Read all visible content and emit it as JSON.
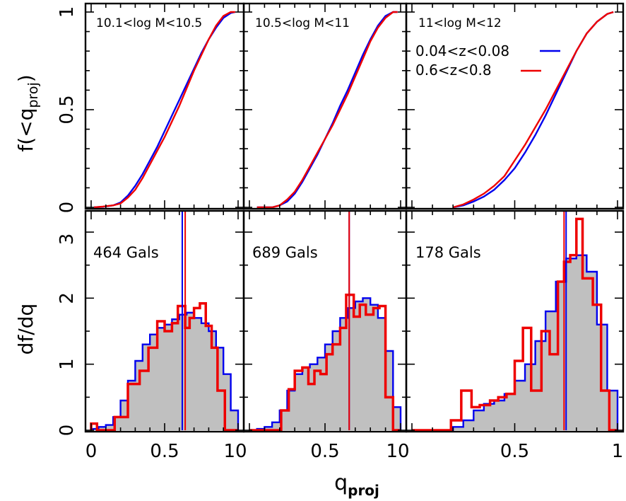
{
  "chart_data": {
    "type": "line",
    "figure": {
      "xlabel": "q",
      "xlabel_sub": "proj",
      "xlim": [
        0,
        1
      ],
      "x_ticks": [
        "0",
        "0.5",
        "1"
      ]
    },
    "colors": {
      "low_z": "#0000ee",
      "high_z": "#ee0000",
      "fill": "#c0c0c0"
    },
    "legend": {
      "placement": "top-right panel",
      "entries": [
        {
          "label": "0.04<z<0.08",
          "color": "#0000ee"
        },
        {
          "label": "0.6<z<0.8",
          "color": "#ee0000"
        }
      ]
    },
    "top_row": {
      "type": "line",
      "ylabel": "f(<q",
      "ylabel_sub": "proj",
      "ylabel_close": ")",
      "ylim": [
        0,
        1
      ],
      "y_ticks": [
        "0",
        "0.5",
        "1"
      ]
    },
    "bottom_row": {
      "type": "histogram",
      "ylabel": "df/dq",
      "ylim": [
        0,
        3
      ],
      "y_ticks": [
        "0",
        "1",
        "2",
        "3"
      ]
    },
    "panels": [
      {
        "mass_label": "10.1<log M<10.5",
        "count_label": "464 Gals",
        "median_low": 0.62,
        "median_high": 0.64,
        "cdf_low_q": [
          0.02,
          0.08,
          0.15,
          0.2,
          0.25,
          0.3,
          0.35,
          0.4,
          0.45,
          0.5,
          0.55,
          0.6,
          0.65,
          0.7,
          0.75,
          0.8,
          0.85,
          0.9,
          0.95,
          0.98
        ],
        "cdf_low_f": [
          0.0,
          0.003,
          0.01,
          0.025,
          0.06,
          0.11,
          0.17,
          0.24,
          0.31,
          0.39,
          0.47,
          0.55,
          0.63,
          0.71,
          0.79,
          0.86,
          0.92,
          0.97,
          0.995,
          1.0
        ],
        "cdf_high_q": [
          0.02,
          0.08,
          0.15,
          0.2,
          0.25,
          0.3,
          0.35,
          0.4,
          0.45,
          0.5,
          0.55,
          0.6,
          0.65,
          0.7,
          0.75,
          0.8,
          0.85,
          0.9,
          0.95,
          0.98
        ],
        "cdf_high_f": [
          0.0,
          0.004,
          0.01,
          0.02,
          0.05,
          0.09,
          0.15,
          0.22,
          0.29,
          0.36,
          0.44,
          0.52,
          0.61,
          0.7,
          0.78,
          0.86,
          0.93,
          0.98,
          1.0,
          1.0
        ],
        "hist_q": [
          0.0,
          0.05,
          0.1,
          0.15,
          0.2,
          0.25,
          0.3,
          0.35,
          0.4,
          0.45,
          0.5,
          0.55,
          0.6,
          0.65,
          0.7,
          0.75,
          0.8,
          0.85,
          0.9,
          0.95,
          1.0
        ],
        "hist_low": [
          0.02,
          0.05,
          0.08,
          0.2,
          0.45,
          0.75,
          1.05,
          1.3,
          1.45,
          1.55,
          1.6,
          1.68,
          1.75,
          1.78,
          1.7,
          1.62,
          1.5,
          1.25,
          0.85,
          0.3
        ],
        "hist_high_edges": [
          0.0,
          0.04,
          0.08,
          0.16,
          0.25,
          0.33,
          0.39,
          0.45,
          0.5,
          0.55,
          0.59,
          0.64,
          0.67,
          0.7,
          0.74,
          0.78,
          0.82,
          0.86,
          0.91,
          0.96,
          1.0
        ],
        "hist_high": [
          0.1,
          0.0,
          0.0,
          0.2,
          0.7,
          0.9,
          1.25,
          1.65,
          1.5,
          1.62,
          1.88,
          1.55,
          1.7,
          1.85,
          1.92,
          1.58,
          1.25,
          0.6,
          0.0,
          0.0
        ]
      },
      {
        "mass_label": "10.5<log M<11",
        "count_label": "689 Gals",
        "median_low": 0.66,
        "median_high": 0.66,
        "cdf_low_q": [
          0.05,
          0.15,
          0.2,
          0.25,
          0.3,
          0.35,
          0.4,
          0.45,
          0.5,
          0.55,
          0.6,
          0.65,
          0.7,
          0.75,
          0.8,
          0.85,
          0.9,
          0.95,
          0.98
        ],
        "cdf_low_f": [
          0.0,
          0.0,
          0.01,
          0.03,
          0.07,
          0.13,
          0.2,
          0.27,
          0.35,
          0.43,
          0.52,
          0.6,
          0.69,
          0.78,
          0.86,
          0.93,
          0.98,
          1.0,
          1.0
        ],
        "cdf_high_q": [
          0.05,
          0.15,
          0.2,
          0.25,
          0.3,
          0.35,
          0.4,
          0.45,
          0.5,
          0.55,
          0.6,
          0.65,
          0.7,
          0.75,
          0.8,
          0.85,
          0.9,
          0.95,
          0.98
        ],
        "cdf_high_f": [
          0.0,
          0.0,
          0.01,
          0.04,
          0.08,
          0.14,
          0.21,
          0.28,
          0.35,
          0.42,
          0.5,
          0.58,
          0.67,
          0.76,
          0.85,
          0.92,
          0.97,
          1.0,
          1.0
        ],
        "hist_q": [
          0.0,
          0.05,
          0.1,
          0.15,
          0.2,
          0.25,
          0.3,
          0.35,
          0.4,
          0.45,
          0.5,
          0.55,
          0.6,
          0.65,
          0.7,
          0.75,
          0.8,
          0.85,
          0.9,
          0.95,
          1.0
        ],
        "hist_low": [
          0.0,
          0.02,
          0.05,
          0.12,
          0.3,
          0.6,
          0.85,
          0.95,
          1.0,
          1.1,
          1.3,
          1.5,
          1.7,
          1.85,
          1.95,
          2.0,
          1.9,
          1.7,
          1.2,
          0.35
        ],
        "hist_high_edges": [
          0.0,
          0.08,
          0.13,
          0.21,
          0.26,
          0.3,
          0.35,
          0.39,
          0.43,
          0.47,
          0.51,
          0.55,
          0.6,
          0.64,
          0.69,
          0.73,
          0.77,
          0.82,
          0.86,
          0.9,
          0.95,
          1.0
        ],
        "hist_high": [
          0.0,
          0.0,
          0.0,
          0.3,
          0.62,
          0.9,
          0.95,
          0.7,
          0.9,
          0.85,
          1.15,
          1.3,
          1.55,
          2.05,
          1.72,
          1.9,
          1.75,
          1.85,
          1.88,
          0.5,
          0.0
        ]
      },
      {
        "mass_label": "11<log M<12",
        "count_label": "178 Gals",
        "median_low": 0.75,
        "median_high": 0.74,
        "cdf_low_q": [
          0.2,
          0.25,
          0.3,
          0.35,
          0.4,
          0.45,
          0.5,
          0.55,
          0.6,
          0.65,
          0.7,
          0.75,
          0.8,
          0.85,
          0.9,
          0.95,
          0.98
        ],
        "cdf_low_f": [
          0.0,
          0.01,
          0.03,
          0.055,
          0.09,
          0.14,
          0.2,
          0.28,
          0.37,
          0.47,
          0.58,
          0.69,
          0.8,
          0.89,
          0.95,
          0.99,
          1.0
        ],
        "cdf_high_q": [
          0.2,
          0.25,
          0.3,
          0.35,
          0.4,
          0.45,
          0.5,
          0.55,
          0.6,
          0.65,
          0.7,
          0.75,
          0.8,
          0.85,
          0.9,
          0.95,
          0.98
        ],
        "cdf_high_f": [
          0.0,
          0.015,
          0.04,
          0.07,
          0.11,
          0.16,
          0.24,
          0.32,
          0.41,
          0.5,
          0.6,
          0.7,
          0.8,
          0.89,
          0.95,
          0.99,
          1.0
        ],
        "hist_q": [
          0.0,
          0.05,
          0.1,
          0.15,
          0.2,
          0.25,
          0.3,
          0.35,
          0.4,
          0.45,
          0.5,
          0.55,
          0.6,
          0.65,
          0.7,
          0.75,
          0.8,
          0.85,
          0.9,
          0.95,
          1.0
        ],
        "hist_low": [
          0.0,
          0.0,
          0.0,
          0.0,
          0.05,
          0.15,
          0.3,
          0.4,
          0.45,
          0.55,
          0.75,
          1.0,
          1.35,
          1.8,
          2.25,
          2.6,
          2.65,
          2.4,
          1.6,
          0.6
        ],
        "hist_high_edges": [
          0.0,
          0.1,
          0.19,
          0.24,
          0.29,
          0.33,
          0.38,
          0.42,
          0.46,
          0.5,
          0.54,
          0.58,
          0.63,
          0.67,
          0.71,
          0.74,
          0.77,
          0.8,
          0.83,
          0.88,
          0.92,
          0.96,
          1.0
        ],
        "hist_high": [
          0.0,
          0.0,
          0.15,
          0.6,
          0.35,
          0.38,
          0.45,
          0.5,
          0.55,
          1.05,
          1.55,
          0.6,
          1.5,
          1.15,
          2.25,
          2.55,
          2.65,
          3.2,
          2.3,
          1.9,
          0.6,
          0.0
        ]
      }
    ]
  }
}
